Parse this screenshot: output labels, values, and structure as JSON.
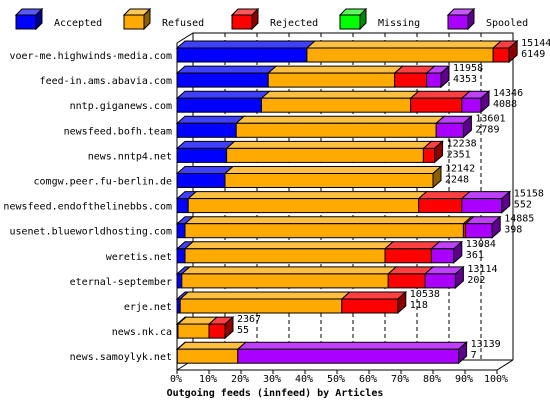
{
  "chart_data": {
    "type": "bar",
    "orientation": "horizontal",
    "stacked": true,
    "xlabel": "Outgoing feeds (innfeed) by Articles",
    "x_ticks": [
      "0%",
      "10%",
      "20%",
      "30%",
      "40%",
      "50%",
      "60%",
      "70%",
      "80%",
      "90%",
      "100%"
    ],
    "legend_position": "top",
    "series": [
      {
        "name": "Accepted",
        "color": "#0000ff"
      },
      {
        "name": "Refused",
        "color": "#ffaa00"
      },
      {
        "name": "Rejected",
        "color": "#ff0000"
      },
      {
        "name": "Missing",
        "color": "#00ff00"
      },
      {
        "name": "Spooled",
        "color": "#aa00ff"
      }
    ],
    "rows": [
      {
        "label": "voer-me.highwinds-media.com",
        "offered": "15144",
        "accepted": "6149",
        "pct": {
          "Accepted": 40.6,
          "Refused": 58.2,
          "Rejected": 5.0,
          "Missing": 0,
          "Spooled": 0
        }
      },
      {
        "label": "feed-in.ams.abavia.com",
        "offered": "11958",
        "accepted": "4353",
        "pct": {
          "Accepted": 28.5,
          "Refused": 39.5,
          "Rejected": 10.0,
          "Missing": 0,
          "Spooled": 4.5
        }
      },
      {
        "label": "nntp.giganews.com",
        "offered": "14346",
        "accepted": "4088",
        "pct": {
          "Accepted": 26.4,
          "Refused": 46.6,
          "Rejected": 16.0,
          "Missing": 0,
          "Spooled": 6.0
        }
      },
      {
        "label": "newsfeed.bofh.team",
        "offered": "13601",
        "accepted": "2789",
        "pct": {
          "Accepted": 18.5,
          "Refused": 62.5,
          "Rejected": 0,
          "Missing": 0,
          "Spooled": 8.5
        }
      },
      {
        "label": "news.nntp4.net",
        "offered": "12238",
        "accepted": "2351",
        "pct": {
          "Accepted": 15.5,
          "Refused": 61.5,
          "Rejected": 3.5,
          "Missing": 0,
          "Spooled": 0
        }
      },
      {
        "label": "comgw.peer.fu-berlin.de",
        "offered": "12142",
        "accepted": "2248",
        "pct": {
          "Accepted": 15.0,
          "Refused": 65.0,
          "Rejected": 0,
          "Missing": 0,
          "Spooled": 0
        }
      },
      {
        "label": "newsfeed.endofthelinebbs.com",
        "offered": "15158",
        "accepted": "552",
        "pct": {
          "Accepted": 3.5,
          "Refused": 72.0,
          "Rejected": 13.5,
          "Missing": 0,
          "Spooled": 12.5
        }
      },
      {
        "label": "usenet.blueworldhosting.com",
        "offered": "14885",
        "accepted": "398",
        "pct": {
          "Accepted": 2.5,
          "Refused": 87.0,
          "Rejected": 0.7,
          "Missing": 0,
          "Spooled": 8.3
        }
      },
      {
        "label": "weretis.net",
        "offered": "13084",
        "accepted": "361",
        "pct": {
          "Accepted": 2.5,
          "Refused": 62.5,
          "Rejected": 14.5,
          "Missing": 0,
          "Spooled": 7.0
        }
      },
      {
        "label": "eternal-september",
        "offered": "13114",
        "accepted": "202",
        "pct": {
          "Accepted": 1.5,
          "Refused": 64.5,
          "Rejected": 11.5,
          "Missing": 0,
          "Spooled": 9.5
        }
      },
      {
        "label": "erje.net",
        "offered": "10538",
        "accepted": "118",
        "pct": {
          "Accepted": 1.0,
          "Refused": 50.5,
          "Rejected": 17.5,
          "Missing": 0,
          "Spooled": 0
        }
      },
      {
        "label": "news.nk.ca",
        "offered": "2367",
        "accepted": "55",
        "pct": {
          "Accepted": 0.3,
          "Refused": 9.7,
          "Rejected": 5.0,
          "Missing": 0,
          "Spooled": 0
        }
      },
      {
        "label": "news.samoylyk.net",
        "offered": "13139",
        "accepted": "7",
        "pct": {
          "Accepted": 0.1,
          "Refused": 18.9,
          "Rejected": 0,
          "Missing": 0,
          "Spooled": 69.0
        }
      }
    ]
  }
}
